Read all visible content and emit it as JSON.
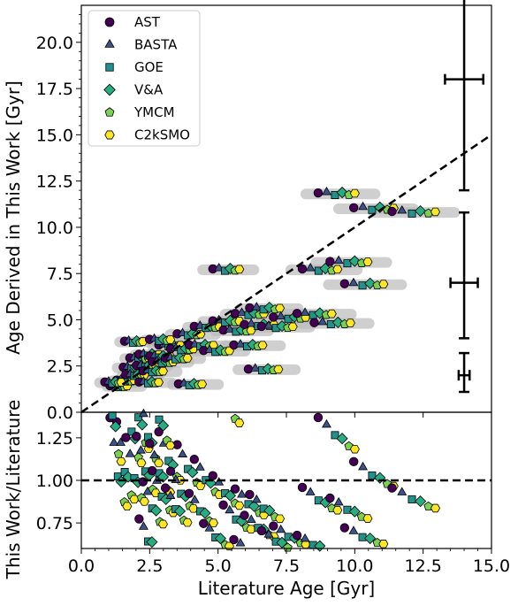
{
  "chart_data": [
    {
      "panel": "main",
      "type": "scatter",
      "xlabel": "",
      "ylabel": "Age Derived in This Work [Gyr]",
      "xlim": [
        0.0,
        15.0
      ],
      "ylim": [
        0.0,
        22.0
      ],
      "xticks": [
        0.0,
        2.5,
        5.0,
        7.5,
        10.0,
        12.5,
        15.0
      ],
      "yticks": [
        0.0,
        2.5,
        5.0,
        7.5,
        10.0,
        12.5,
        15.0,
        17.5,
        20.0
      ],
      "ytick_labels": [
        "0.0",
        "2.5",
        "5.0",
        "7.5",
        "10.0",
        "12.5",
        "15.0",
        "17.5",
        "20.0"
      ],
      "reference_line": {
        "style": "dashed",
        "x": [
          0,
          15
        ],
        "y": [
          0,
          15
        ]
      },
      "legend": {
        "placement": "top-left",
        "entries": [
          {
            "name": "AST",
            "marker": "circle",
            "color": "#440154"
          },
          {
            "name": "BASTA",
            "marker": "triangle",
            "color": "#3b528b"
          },
          {
            "name": "GOE",
            "marker": "square",
            "color": "#21918c"
          },
          {
            "name": "V&A",
            "marker": "diamond",
            "color": "#27ad81"
          },
          {
            "name": "YMCM",
            "marker": "pentagon",
            "color": "#7ad151"
          },
          {
            "name": "C2kSMO",
            "marker": "hexagon",
            "color": "#fde725"
          }
        ]
      },
      "typical_errors": [
        {
          "x": 14.0,
          "y": 18.0,
          "xerr": 0.7,
          "yerr_low": 6.0,
          "yerr_high": 6.0
        },
        {
          "x": 14.0,
          "y": 7.0,
          "xerr": 0.5,
          "yerr_low": 3.0,
          "yerr_high": 3.8
        },
        {
          "x": 14.0,
          "y": 2.0,
          "xerr": 0.2,
          "yerr_low": 0.9,
          "yerr_high": 1.2
        }
      ],
      "stars": [
        {
          "x": 1.3,
          "y": 1.4
        },
        {
          "x": 1.5,
          "y": 1.7
        },
        {
          "x": 1.7,
          "y": 2.4
        },
        {
          "x": 1.9,
          "y": 2.0
        },
        {
          "x": 2.0,
          "y": 2.9
        },
        {
          "x": 2.2,
          "y": 2.5
        },
        {
          "x": 2.4,
          "y": 3.1
        },
        {
          "x": 2.5,
          "y": 2.2
        },
        {
          "x": 2.7,
          "y": 3.0
        },
        {
          "x": 2.9,
          "y": 2.7
        },
        {
          "x": 3.1,
          "y": 3.6
        },
        {
          "x": 3.3,
          "y": 2.9
        },
        {
          "x": 3.6,
          "y": 3.4
        },
        {
          "x": 1.8,
          "y": 3.8
        },
        {
          "x": 2.3,
          "y": 1.6
        },
        {
          "x": 3.9,
          "y": 1.5
        },
        {
          "x": 3.8,
          "y": 4.2
        },
        {
          "x": 4.2,
          "y": 3.6
        },
        {
          "x": 4.5,
          "y": 4.6
        },
        {
          "x": 4.8,
          "y": 3.3
        },
        {
          "x": 5.1,
          "y": 4.9
        },
        {
          "x": 5.6,
          "y": 4.4
        },
        {
          "x": 6.0,
          "y": 5.3
        },
        {
          "x": 6.3,
          "y": 4.7
        },
        {
          "x": 6.6,
          "y": 5.6
        },
        {
          "x": 7.0,
          "y": 4.6
        },
        {
          "x": 7.4,
          "y": 5.1
        },
        {
          "x": 6.0,
          "y": 3.6
        },
        {
          "x": 6.5,
          "y": 2.3
        },
        {
          "x": 5.1,
          "y": 7.7
        },
        {
          "x": 8.6,
          "y": 7.7
        },
        {
          "x": 9.6,
          "y": 8.1
        },
        {
          "x": 10.1,
          "y": 6.9
        },
        {
          "x": 9.2,
          "y": 11.8
        },
        {
          "x": 10.5,
          "y": 11.0
        },
        {
          "x": 11.9,
          "y": 10.8
        },
        {
          "x": 8.4,
          "y": 5.3
        },
        {
          "x": 9.0,
          "y": 4.8
        },
        {
          "x": 1.0,
          "y": 1.6
        },
        {
          "x": 2.8,
          "y": 3.9
        }
      ]
    },
    {
      "panel": "ratio",
      "type": "scatter",
      "xlabel": "Literature Age [Gyr]",
      "ylabel": "This Work/Literature",
      "xlim": [
        0.0,
        15.0
      ],
      "ylim": [
        0.6,
        1.4
      ],
      "xticks": [
        0.0,
        2.5,
        5.0,
        7.5,
        10.0,
        12.5,
        15.0
      ],
      "xtick_labels": [
        "0.0",
        "2.5",
        "5.0",
        "7.5",
        "10.0",
        "12.5",
        "15.0"
      ],
      "yticks": [
        0.75,
        1.0,
        1.25
      ],
      "ytick_labels": [
        "0.75",
        "1.00",
        "1.25"
      ],
      "reference_line": {
        "style": "dashed",
        "y": 1.0
      }
    }
  ]
}
